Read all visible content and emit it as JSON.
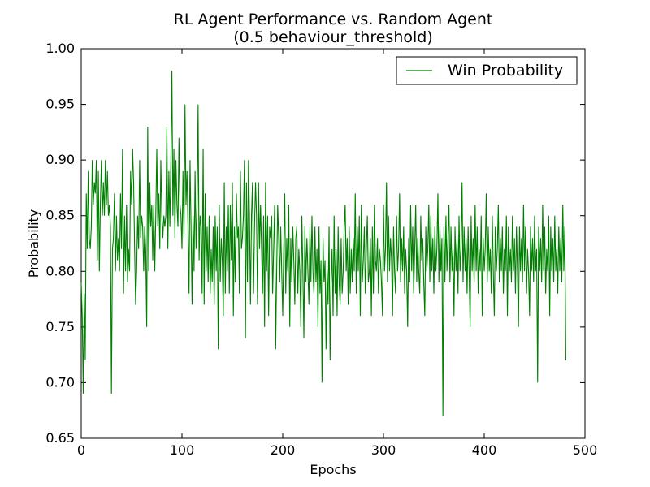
{
  "chart_data": {
    "type": "line",
    "title": "RL Agent Performance vs. Random Agent",
    "subtitle": "(0.5 behaviour_threshold)",
    "xlabel": "Epochs",
    "ylabel": "Probability",
    "xlim": [
      0,
      500
    ],
    "ylim": [
      0.65,
      1.0
    ],
    "x_ticks": [
      "0",
      "100",
      "200",
      "300",
      "400",
      "500"
    ],
    "y_ticks": [
      "0.65",
      "0.70",
      "0.75",
      "0.80",
      "0.85",
      "0.90",
      "0.95",
      "1.00"
    ],
    "legend_position": "top-right",
    "grid": false,
    "series": [
      {
        "name": "Win Probability",
        "color": "#008000",
        "x_start": 0,
        "x_step": 1,
        "values": [
          0.79,
          0.76,
          0.69,
          0.78,
          0.72,
          0.87,
          0.82,
          0.89,
          0.83,
          0.82,
          0.84,
          0.9,
          0.86,
          0.88,
          0.87,
          0.9,
          0.81,
          0.89,
          0.8,
          0.86,
          0.9,
          0.85,
          0.88,
          0.85,
          0.9,
          0.86,
          0.89,
          0.85,
          0.86,
          0.84,
          0.69,
          0.82,
          0.83,
          0.87,
          0.8,
          0.85,
          0.81,
          0.83,
          0.8,
          0.87,
          0.82,
          0.91,
          0.78,
          0.85,
          0.8,
          0.86,
          0.79,
          0.82,
          0.8,
          0.89,
          0.86,
          0.91,
          0.88,
          0.82,
          0.77,
          0.8,
          0.85,
          0.82,
          0.9,
          0.83,
          0.85,
          0.84,
          0.8,
          0.84,
          0.82,
          0.75,
          0.93,
          0.8,
          0.88,
          0.84,
          0.86,
          0.81,
          0.86,
          0.8,
          0.85,
          0.91,
          0.84,
          0.87,
          0.82,
          0.9,
          0.85,
          0.83,
          0.85,
          0.84,
          0.85,
          0.93,
          0.82,
          0.89,
          0.84,
          0.9,
          0.98,
          0.85,
          0.91,
          0.83,
          0.9,
          0.86,
          0.84,
          0.92,
          0.86,
          0.85,
          0.82,
          0.89,
          0.83,
          0.95,
          0.86,
          0.89,
          0.84,
          0.78,
          0.9,
          0.84,
          0.77,
          0.85,
          0.8,
          0.89,
          0.82,
          0.86,
          0.95,
          0.81,
          0.85,
          0.84,
          0.78,
          0.91,
          0.77,
          0.87,
          0.8,
          0.84,
          0.79,
          0.85,
          0.78,
          0.82,
          0.79,
          0.84,
          0.77,
          0.85,
          0.8,
          0.84,
          0.73,
          0.86,
          0.79,
          0.83,
          0.81,
          0.76,
          0.88,
          0.78,
          0.84,
          0.8,
          0.86,
          0.78,
          0.86,
          0.81,
          0.88,
          0.76,
          0.84,
          0.79,
          0.87,
          0.83,
          0.84,
          0.78,
          0.89,
          0.82,
          0.83,
          0.85,
          0.9,
          0.74,
          0.88,
          0.79,
          0.9,
          0.85,
          0.77,
          0.85,
          0.88,
          0.78,
          0.84,
          0.88,
          0.85,
          0.77,
          0.88,
          0.82,
          0.86,
          0.82,
          0.78,
          0.85,
          0.75,
          0.88,
          0.8,
          0.85,
          0.76,
          0.84,
          0.83,
          0.85,
          0.78,
          0.82,
          0.86,
          0.73,
          0.8,
          0.86,
          0.83,
          0.79,
          0.84,
          0.8,
          0.76,
          0.82,
          0.87,
          0.78,
          0.83,
          0.8,
          0.86,
          0.75,
          0.83,
          0.79,
          0.84,
          0.81,
          0.77,
          0.83,
          0.84,
          0.78,
          0.82,
          0.8,
          0.75,
          0.85,
          0.8,
          0.74,
          0.84,
          0.79,
          0.83,
          0.8,
          0.77,
          0.84,
          0.79,
          0.85,
          0.8,
          0.78,
          0.84,
          0.79,
          0.82,
          0.75,
          0.84,
          0.78,
          0.81,
          0.7,
          0.83,
          0.79,
          0.81,
          0.73,
          0.8,
          0.77,
          0.84,
          0.72,
          0.79,
          0.82,
          0.76,
          0.85,
          0.78,
          0.82,
          0.76,
          0.84,
          0.79,
          0.77,
          0.83,
          0.78,
          0.8,
          0.84,
          0.86,
          0.8,
          0.83,
          0.77,
          0.84,
          0.78,
          0.82,
          0.79,
          0.83,
          0.8,
          0.87,
          0.78,
          0.84,
          0.8,
          0.85,
          0.76,
          0.86,
          0.79,
          0.81,
          0.84,
          0.78,
          0.82,
          0.85,
          0.79,
          0.8,
          0.83,
          0.76,
          0.84,
          0.78,
          0.86,
          0.81,
          0.8,
          0.83,
          0.78,
          0.82,
          0.81,
          0.79,
          0.76,
          0.86,
          0.8,
          0.82,
          0.88,
          0.79,
          0.85,
          0.8,
          0.83,
          0.81,
          0.76,
          0.84,
          0.8,
          0.78,
          0.85,
          0.8,
          0.82,
          0.87,
          0.79,
          0.83,
          0.8,
          0.84,
          0.78,
          0.82,
          0.8,
          0.75,
          0.83,
          0.79,
          0.86,
          0.8,
          0.84,
          0.78,
          0.82,
          0.86,
          0.79,
          0.83,
          0.8,
          0.78,
          0.85,
          0.81,
          0.83,
          0.79,
          0.76,
          0.84,
          0.8,
          0.82,
          0.86,
          0.79,
          0.85,
          0.8,
          0.83,
          0.78,
          0.84,
          0.8,
          0.82,
          0.87,
          0.79,
          0.84,
          0.8,
          0.83,
          0.67,
          0.84,
          0.79,
          0.85,
          0.8,
          0.83,
          0.86,
          0.79,
          0.84,
          0.8,
          0.82,
          0.76,
          0.84,
          0.8,
          0.83,
          0.78,
          0.85,
          0.8,
          0.82,
          0.88,
          0.79,
          0.84,
          0.8,
          0.83,
          0.78,
          0.84,
          0.8,
          0.75,
          0.85,
          0.8,
          0.83,
          0.79,
          0.86,
          0.8,
          0.84,
          0.78,
          0.82,
          0.8,
          0.85,
          0.76,
          0.83,
          0.8,
          0.82,
          0.87,
          0.79,
          0.84,
          0.8,
          0.82,
          0.78,
          0.85,
          0.8,
          0.76,
          0.84,
          0.8,
          0.82,
          0.86,
          0.79,
          0.83,
          0.8,
          0.84,
          0.78,
          0.82,
          0.8,
          0.85,
          0.76,
          0.84,
          0.8,
          0.82,
          0.79,
          0.85,
          0.8,
          0.83,
          0.78,
          0.84,
          0.8,
          0.75,
          0.84,
          0.8,
          0.83,
          0.79,
          0.86,
          0.8,
          0.84,
          0.78,
          0.82,
          0.8,
          0.76,
          0.84,
          0.8,
          0.83,
          0.79,
          0.85,
          0.8,
          0.82,
          0.7,
          0.84,
          0.8,
          0.83,
          0.79,
          0.86,
          0.8,
          0.84,
          0.78,
          0.82,
          0.8,
          0.85,
          0.76,
          0.84,
          0.8,
          0.83,
          0.79,
          0.85,
          0.8,
          0.82,
          0.78,
          0.84,
          0.8,
          0.83,
          0.79,
          0.86,
          0.8,
          0.84,
          0.72
        ]
      }
    ]
  }
}
